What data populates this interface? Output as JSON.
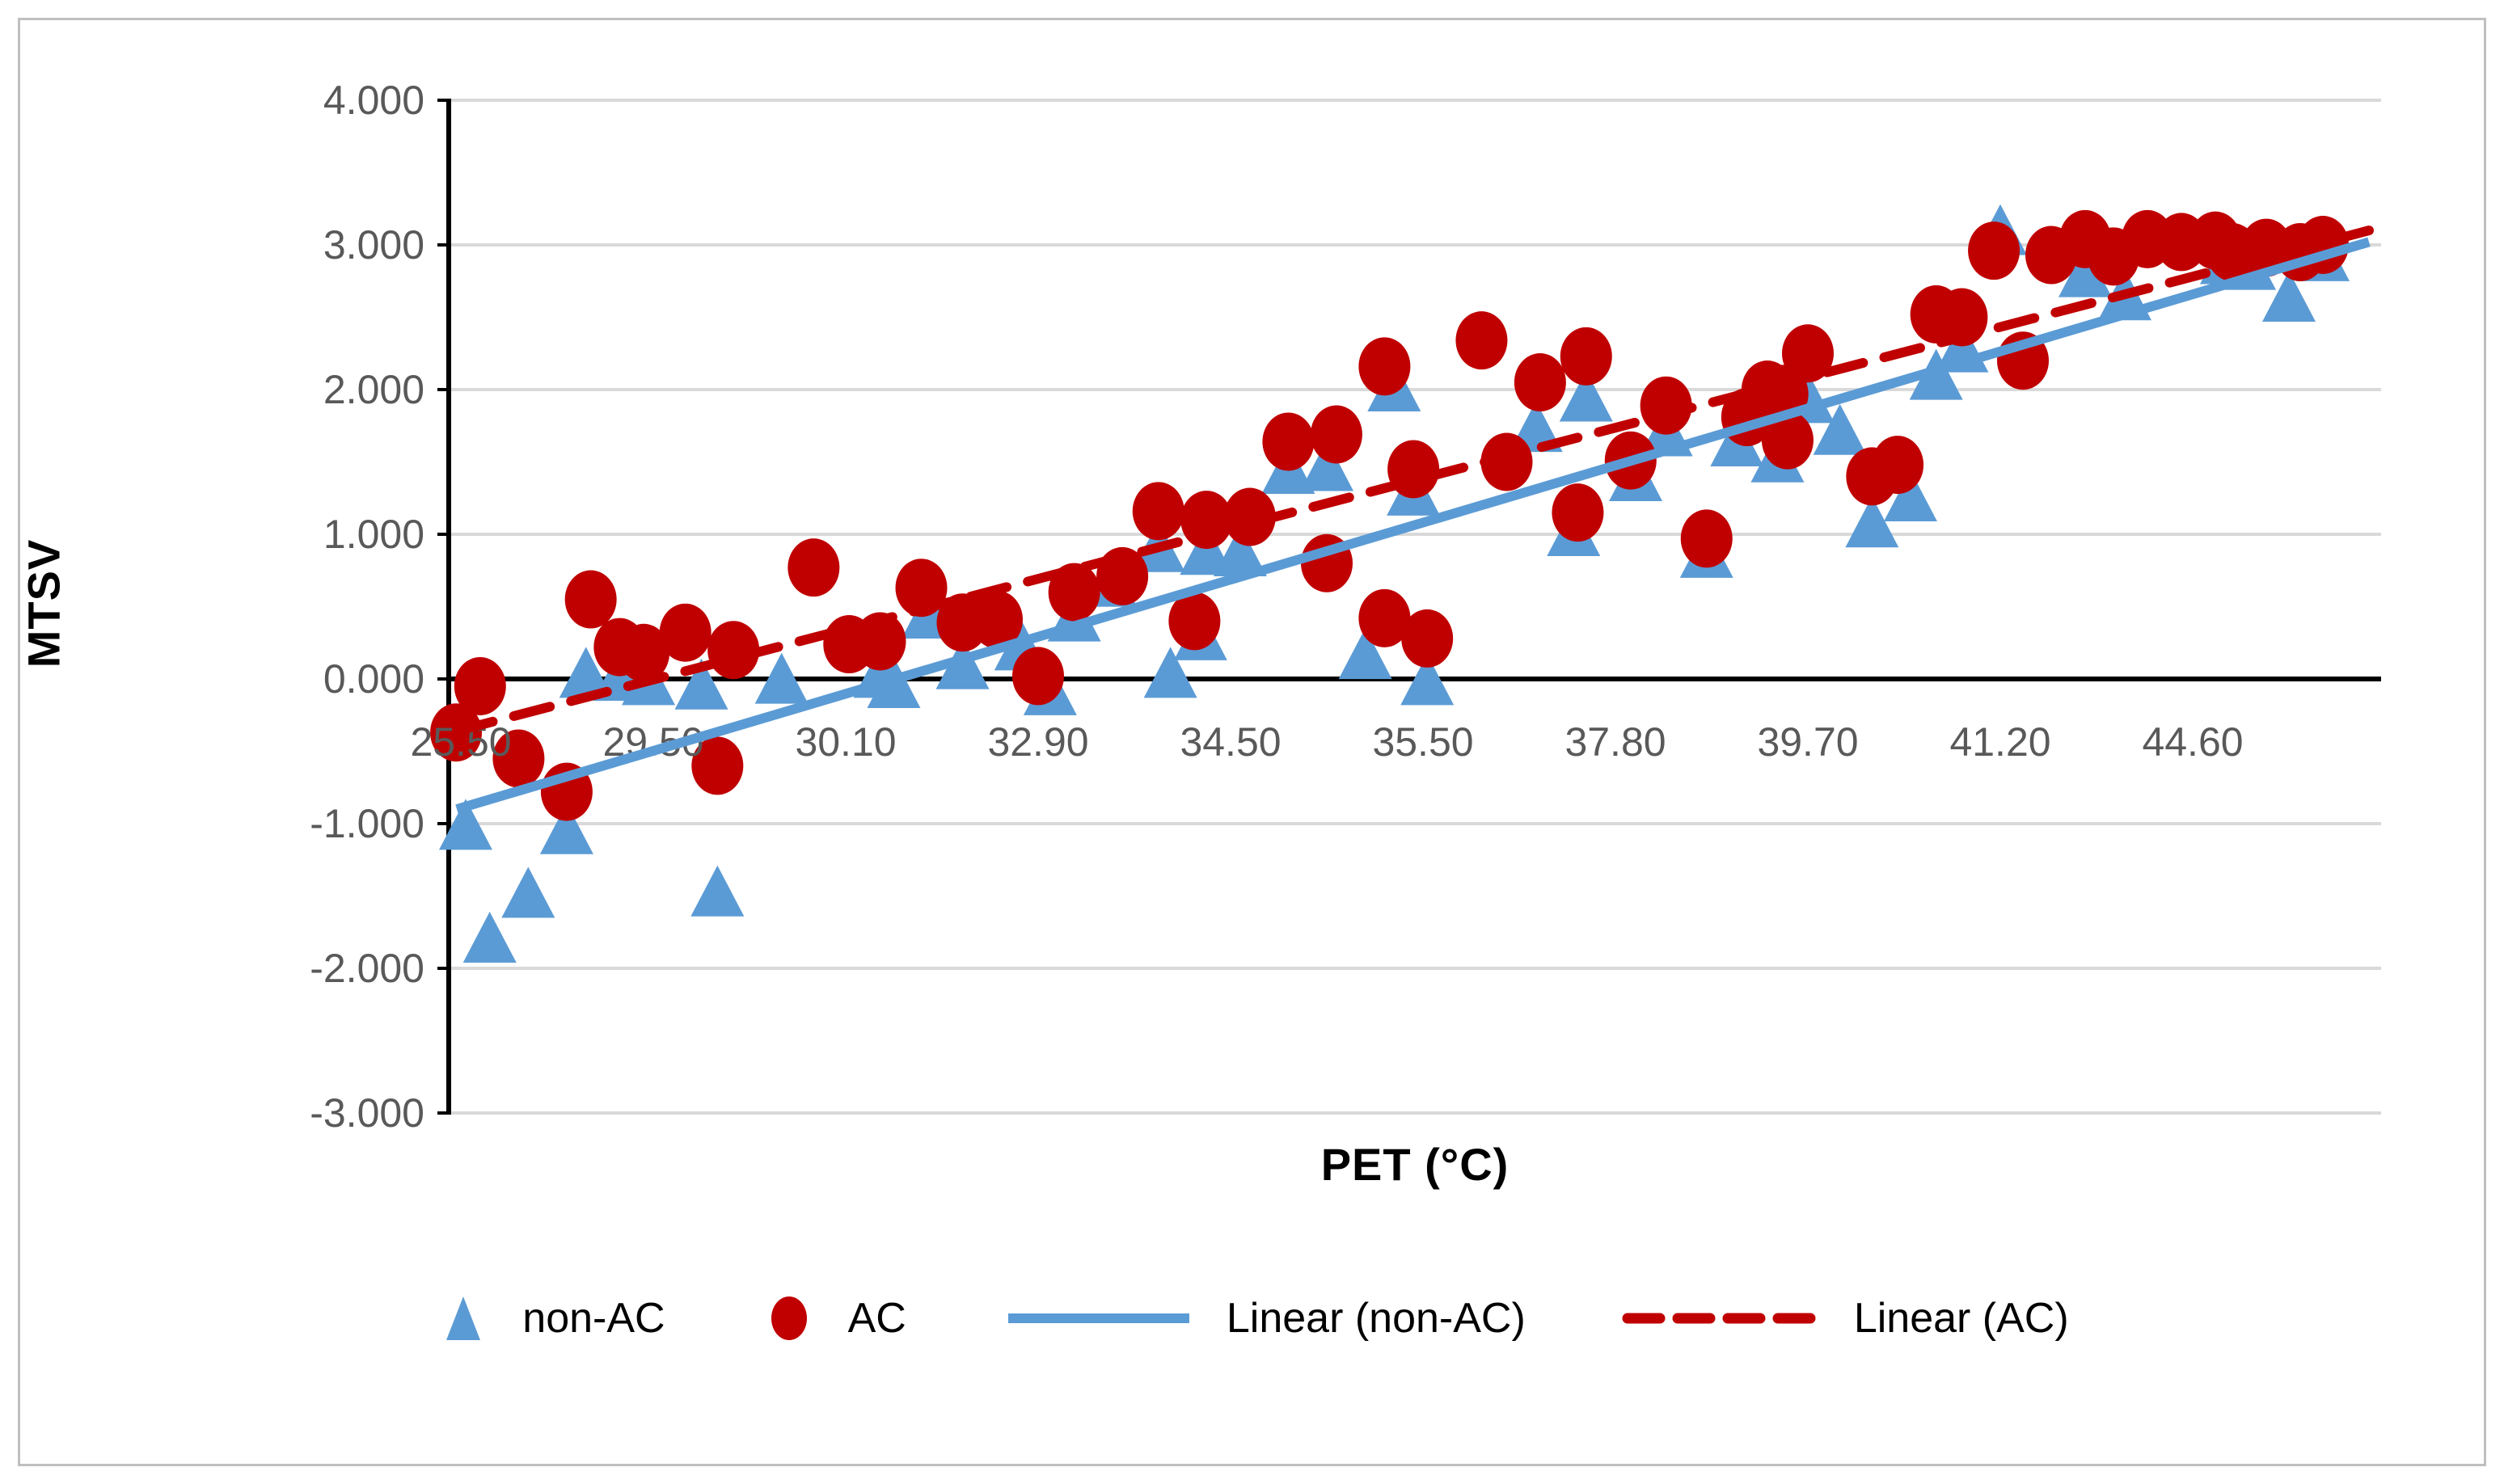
{
  "figure": {
    "background": "#FFFFFF",
    "border_color": "#BFBFBF",
    "grid_color": "#D9D9D9",
    "axis_color": "#000000",
    "tick_text_color": "#595959",
    "non_ac_color": "#5B9BD5",
    "ac_color": "#C00000"
  },
  "y_axis": {
    "title": "MTSV",
    "tick_labels": [
      "4.000",
      "3.000",
      "2.000",
      "1.000",
      "0.000",
      "-1.000",
      "-2.000",
      "-3.000"
    ],
    "tick_values": [
      4,
      3,
      2,
      1,
      0,
      -1,
      -2,
      -3
    ]
  },
  "x_axis": {
    "title": "PET (°C)",
    "tick_labels": [
      "25.50",
      "29.50",
      "30.10",
      "32.90",
      "34.50",
      "35.50",
      "37.80",
      "39.70",
      "41.20",
      "44.60"
    ],
    "tick_values": [
      25.5,
      29.5,
      30.1,
      32.9,
      34.5,
      35.5,
      37.8,
      39.7,
      41.2,
      44.6
    ]
  },
  "legend": [
    {
      "label": "non-AC",
      "marker": "triangle",
      "color": "#5B9BD5"
    },
    {
      "label": "AC",
      "marker": "circle",
      "color": "#C00000"
    },
    {
      "label": "Linear (non-AC)",
      "marker": "solid-line",
      "color": "#5B9BD5"
    },
    {
      "label": "Linear (AC)",
      "marker": "dashed-line",
      "color": "#C00000"
    }
  ],
  "chart_data": {
    "type": "scatter",
    "title": "",
    "xlabel": "PET (°C)",
    "ylabel": "MTSV",
    "ylim": [
      -3,
      4
    ],
    "grid": "horizontal",
    "legend_position": "bottom",
    "series": [
      {
        "name": "non-AC",
        "marker": "triangle",
        "color": "#5B9BD5",
        "points": [
          [
            25.6,
            -1.03
          ],
          [
            26.1,
            -1.81
          ],
          [
            26.9,
            -1.5
          ],
          [
            27.7,
            -1.06
          ],
          [
            29.7,
            -1.49
          ],
          [
            28.1,
            0.02
          ],
          [
            28.8,
            0.0
          ],
          [
            29.4,
            -0.03
          ],
          [
            29.65,
            -0.06
          ],
          [
            29.9,
            -0.02
          ],
          [
            30.6,
            0.02
          ],
          [
            30.8,
            -0.05
          ],
          [
            31.3,
            0.43
          ],
          [
            31.8,
            0.08
          ],
          [
            32.65,
            0.21
          ],
          [
            33.0,
            -0.1
          ],
          [
            33.2,
            0.41
          ],
          [
            33.5,
            0.65
          ],
          [
            33.9,
            0.89
          ],
          [
            34.0,
            0.02
          ],
          [
            34.25,
            0.28
          ],
          [
            34.3,
            0.87
          ],
          [
            34.55,
            0.86
          ],
          [
            34.8,
            1.43
          ],
          [
            35.0,
            1.45
          ],
          [
            35.2,
            0.15
          ],
          [
            35.45,
            1.28
          ],
          [
            35.55,
            -0.03
          ],
          [
            35.35,
            2.0
          ],
          [
            36.85,
            1.72
          ],
          [
            37.3,
            1.0
          ],
          [
            37.45,
            1.93
          ],
          [
            38.0,
            1.38
          ],
          [
            38.3,
            1.69
          ],
          [
            38.7,
            0.85
          ],
          [
            39.0,
            1.62
          ],
          [
            39.4,
            1.51
          ],
          [
            39.7,
            1.92
          ],
          [
            39.95,
            1.7
          ],
          [
            40.2,
            1.06
          ],
          [
            40.5,
            1.24
          ],
          [
            40.7,
            2.08
          ],
          [
            40.9,
            2.27
          ],
          [
            41.2,
            3.08
          ],
          [
            42.7,
            2.79
          ],
          [
            43.4,
            2.63
          ],
          [
            45.2,
            2.88
          ],
          [
            45.6,
            2.84
          ],
          [
            46.3,
            2.62
          ],
          [
            46.9,
            2.9
          ]
        ]
      },
      {
        "name": "AC",
        "marker": "circle",
        "color": "#C00000",
        "points": [
          [
            25.4,
            -0.37
          ],
          [
            25.9,
            -0.05
          ],
          [
            26.7,
            -0.55
          ],
          [
            27.7,
            -0.78
          ],
          [
            29.7,
            -0.6
          ],
          [
            28.2,
            0.55
          ],
          [
            28.8,
            0.22
          ],
          [
            29.3,
            0.18
          ],
          [
            29.6,
            0.32
          ],
          [
            29.75,
            0.2
          ],
          [
            30.0,
            0.77
          ],
          [
            30.15,
            0.24
          ],
          [
            30.6,
            0.26
          ],
          [
            31.2,
            0.63
          ],
          [
            31.8,
            0.39
          ],
          [
            32.3,
            0.41
          ],
          [
            32.9,
            0.02
          ],
          [
            33.2,
            0.6
          ],
          [
            33.6,
            0.71
          ],
          [
            33.9,
            1.16
          ],
          [
            34.2,
            0.4
          ],
          [
            34.3,
            1.1
          ],
          [
            34.6,
            1.12
          ],
          [
            34.8,
            1.64
          ],
          [
            35.05,
            1.69
          ],
          [
            35.0,
            0.8
          ],
          [
            35.3,
            0.42
          ],
          [
            35.3,
            2.16
          ],
          [
            35.45,
            1.45
          ],
          [
            35.55,
            0.28
          ],
          [
            36.2,
            2.34
          ],
          [
            36.5,
            1.5
          ],
          [
            36.9,
            2.05
          ],
          [
            37.35,
            1.15
          ],
          [
            37.45,
            2.23
          ],
          [
            37.95,
            1.51
          ],
          [
            38.3,
            1.89
          ],
          [
            38.7,
            0.97
          ],
          [
            39.1,
            1.81
          ],
          [
            39.3,
            2.0
          ],
          [
            39.45,
            1.97
          ],
          [
            39.5,
            1.65
          ],
          [
            39.7,
            2.25
          ],
          [
            40.2,
            1.4
          ],
          [
            40.4,
            1.48
          ],
          [
            40.7,
            2.52
          ],
          [
            40.9,
            2.5
          ],
          [
            41.15,
            2.96
          ],
          [
            41.6,
            2.2
          ],
          [
            42.1,
            2.93
          ],
          [
            42.7,
            3.04
          ],
          [
            43.2,
            2.92
          ],
          [
            43.8,
            3.04
          ],
          [
            44.4,
            3.02
          ],
          [
            45.0,
            3.03
          ],
          [
            45.3,
            2.95
          ],
          [
            45.9,
            2.98
          ],
          [
            46.5,
            2.95
          ],
          [
            46.9,
            3.0
          ]
        ]
      }
    ],
    "trendlines": [
      {
        "name": "Linear (non-AC)",
        "style": "solid",
        "color": "#5B9BD5",
        "start_mtsv": -0.9,
        "end_mtsv": 3.02
      },
      {
        "name": "Linear (AC)",
        "style": "dashed",
        "color": "#C00000",
        "start_mtsv": -0.36,
        "end_mtsv": 3.1
      }
    ]
  }
}
